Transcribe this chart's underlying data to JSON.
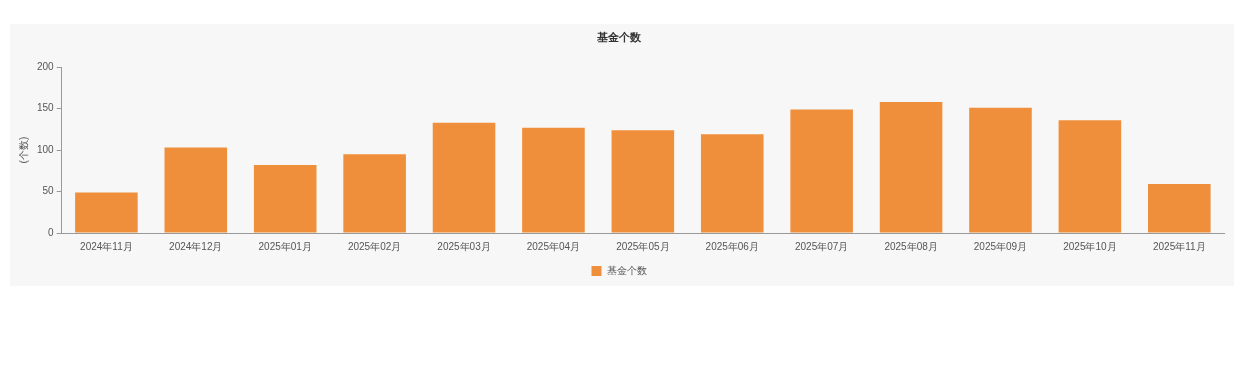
{
  "chart_data": {
    "type": "bar",
    "title": "基金个数",
    "ylabel": "(个数)",
    "categories": [
      "2024年11月",
      "2024年12月",
      "2025年01月",
      "2025年02月",
      "2025年03月",
      "2025年04月",
      "2025年05月",
      "2025年06月",
      "2025年07月",
      "2025年08月",
      "2025年09月",
      "2025年10月",
      "2025年11月"
    ],
    "series": [
      {
        "name": "基金个数",
        "color": "#f08f3b",
        "values": [
          49,
          103,
          82,
          95,
          133,
          127,
          124,
          119,
          149,
          158,
          151,
          136,
          59
        ]
      }
    ],
    "ylim": [
      0,
      200
    ],
    "yticks": [
      0,
      50,
      100,
      150,
      200
    ],
    "grid": false,
    "legend": "bottom"
  }
}
